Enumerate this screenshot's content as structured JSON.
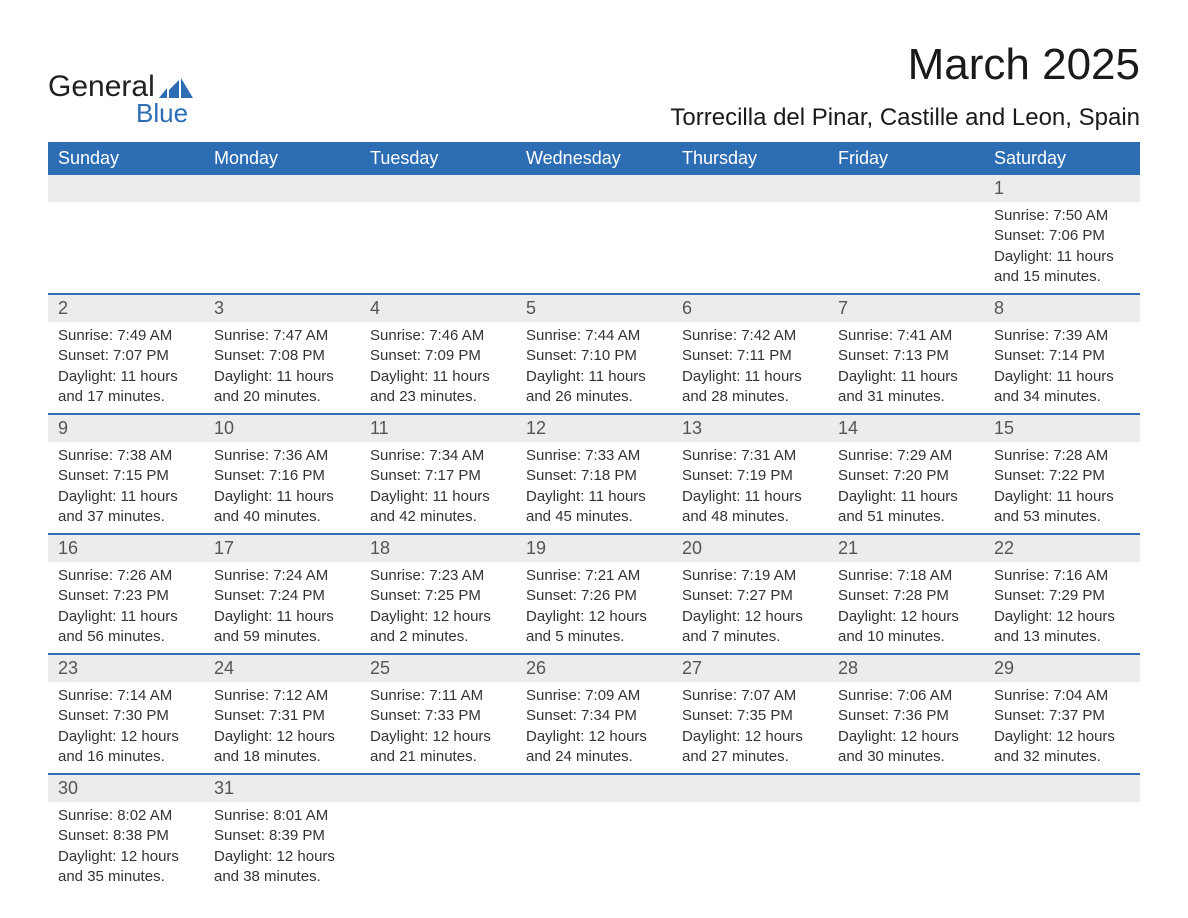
{
  "logo": {
    "text_general": "General",
    "text_blue": "Blue",
    "icon_color": "#2c6db3"
  },
  "title": "March 2025",
  "location": "Torrecilla del Pinar, Castille and Leon, Spain",
  "colors": {
    "header_bg": "#2c6db3",
    "header_text": "#ffffff",
    "daynum_bg": "#ececec",
    "daynum_text": "#555555",
    "body_text": "#333333",
    "row_divider": "#2c6db3",
    "page_bg": "#ffffff"
  },
  "typography": {
    "title_fontsize": 44,
    "location_fontsize": 24,
    "weekday_fontsize": 18,
    "daynum_fontsize": 18,
    "detail_fontsize": 15,
    "font_family": "Arial"
  },
  "weekdays": [
    "Sunday",
    "Monday",
    "Tuesday",
    "Wednesday",
    "Thursday",
    "Friday",
    "Saturday"
  ],
  "labels": {
    "sunrise": "Sunrise:",
    "sunset": "Sunset:",
    "daylight": "Daylight:"
  },
  "weeks": [
    [
      null,
      null,
      null,
      null,
      null,
      null,
      {
        "n": "1",
        "sr": "7:50 AM",
        "ss": "7:06 PM",
        "dl": "11 hours and 15 minutes."
      }
    ],
    [
      {
        "n": "2",
        "sr": "7:49 AM",
        "ss": "7:07 PM",
        "dl": "11 hours and 17 minutes."
      },
      {
        "n": "3",
        "sr": "7:47 AM",
        "ss": "7:08 PM",
        "dl": "11 hours and 20 minutes."
      },
      {
        "n": "4",
        "sr": "7:46 AM",
        "ss": "7:09 PM",
        "dl": "11 hours and 23 minutes."
      },
      {
        "n": "5",
        "sr": "7:44 AM",
        "ss": "7:10 PM",
        "dl": "11 hours and 26 minutes."
      },
      {
        "n": "6",
        "sr": "7:42 AM",
        "ss": "7:11 PM",
        "dl": "11 hours and 28 minutes."
      },
      {
        "n": "7",
        "sr": "7:41 AM",
        "ss": "7:13 PM",
        "dl": "11 hours and 31 minutes."
      },
      {
        "n": "8",
        "sr": "7:39 AM",
        "ss": "7:14 PM",
        "dl": "11 hours and 34 minutes."
      }
    ],
    [
      {
        "n": "9",
        "sr": "7:38 AM",
        "ss": "7:15 PM",
        "dl": "11 hours and 37 minutes."
      },
      {
        "n": "10",
        "sr": "7:36 AM",
        "ss": "7:16 PM",
        "dl": "11 hours and 40 minutes."
      },
      {
        "n": "11",
        "sr": "7:34 AM",
        "ss": "7:17 PM",
        "dl": "11 hours and 42 minutes."
      },
      {
        "n": "12",
        "sr": "7:33 AM",
        "ss": "7:18 PM",
        "dl": "11 hours and 45 minutes."
      },
      {
        "n": "13",
        "sr": "7:31 AM",
        "ss": "7:19 PM",
        "dl": "11 hours and 48 minutes."
      },
      {
        "n": "14",
        "sr": "7:29 AM",
        "ss": "7:20 PM",
        "dl": "11 hours and 51 minutes."
      },
      {
        "n": "15",
        "sr": "7:28 AM",
        "ss": "7:22 PM",
        "dl": "11 hours and 53 minutes."
      }
    ],
    [
      {
        "n": "16",
        "sr": "7:26 AM",
        "ss": "7:23 PM",
        "dl": "11 hours and 56 minutes."
      },
      {
        "n": "17",
        "sr": "7:24 AM",
        "ss": "7:24 PM",
        "dl": "11 hours and 59 minutes."
      },
      {
        "n": "18",
        "sr": "7:23 AM",
        "ss": "7:25 PM",
        "dl": "12 hours and 2 minutes."
      },
      {
        "n": "19",
        "sr": "7:21 AM",
        "ss": "7:26 PM",
        "dl": "12 hours and 5 minutes."
      },
      {
        "n": "20",
        "sr": "7:19 AM",
        "ss": "7:27 PM",
        "dl": "12 hours and 7 minutes."
      },
      {
        "n": "21",
        "sr": "7:18 AM",
        "ss": "7:28 PM",
        "dl": "12 hours and 10 minutes."
      },
      {
        "n": "22",
        "sr": "7:16 AM",
        "ss": "7:29 PM",
        "dl": "12 hours and 13 minutes."
      }
    ],
    [
      {
        "n": "23",
        "sr": "7:14 AM",
        "ss": "7:30 PM",
        "dl": "12 hours and 16 minutes."
      },
      {
        "n": "24",
        "sr": "7:12 AM",
        "ss": "7:31 PM",
        "dl": "12 hours and 18 minutes."
      },
      {
        "n": "25",
        "sr": "7:11 AM",
        "ss": "7:33 PM",
        "dl": "12 hours and 21 minutes."
      },
      {
        "n": "26",
        "sr": "7:09 AM",
        "ss": "7:34 PM",
        "dl": "12 hours and 24 minutes."
      },
      {
        "n": "27",
        "sr": "7:07 AM",
        "ss": "7:35 PM",
        "dl": "12 hours and 27 minutes."
      },
      {
        "n": "28",
        "sr": "7:06 AM",
        "ss": "7:36 PM",
        "dl": "12 hours and 30 minutes."
      },
      {
        "n": "29",
        "sr": "7:04 AM",
        "ss": "7:37 PM",
        "dl": "12 hours and 32 minutes."
      }
    ],
    [
      {
        "n": "30",
        "sr": "8:02 AM",
        "ss": "8:38 PM",
        "dl": "12 hours and 35 minutes."
      },
      {
        "n": "31",
        "sr": "8:01 AM",
        "ss": "8:39 PM",
        "dl": "12 hours and 38 minutes."
      },
      null,
      null,
      null,
      null,
      null
    ]
  ]
}
